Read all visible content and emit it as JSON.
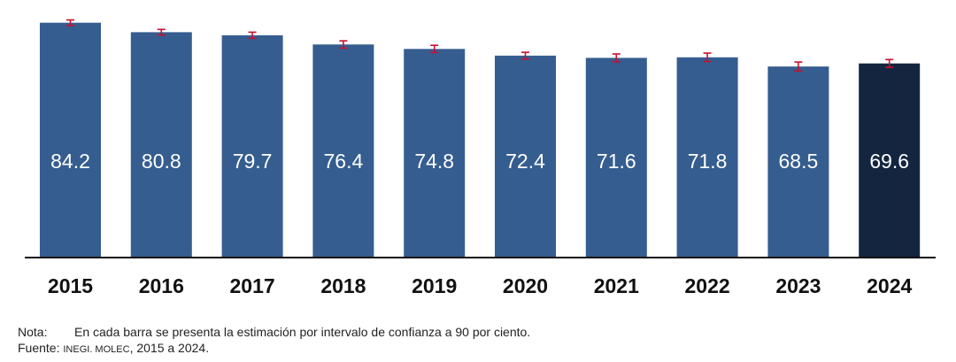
{
  "chart_data": {
    "type": "bar",
    "categories": [
      "2015",
      "2016",
      "2017",
      "2018",
      "2019",
      "2020",
      "2021",
      "2022",
      "2023",
      "2024"
    ],
    "values": [
      84.2,
      80.8,
      79.7,
      76.4,
      74.8,
      72.4,
      71.6,
      71.8,
      68.5,
      69.6
    ],
    "error_bars": {
      "lower": [
        83.2,
        79.8,
        78.6,
        75.1,
        73.5,
        71.2,
        70.2,
        70.3,
        66.9,
        68.2
      ],
      "upper": [
        85.2,
        81.8,
        80.8,
        77.7,
        76.1,
        73.6,
        73.0,
        73.3,
        70.1,
        71.0
      ]
    },
    "title": "",
    "xlabel": "",
    "ylabel": "",
    "ylim": [
      0,
      86
    ],
    "grid": false,
    "legend": "none",
    "highlight_category": "2024",
    "colors": {
      "bar": "#355d8f",
      "highlight": "#13253f",
      "error": "#c8102e",
      "axis": "#111111",
      "label": "#ffffff"
    }
  },
  "notes": {
    "nota_label": "Nota:",
    "nota_text": "En cada barra se presenta la estimación por intervalo de confianza a 90 por ciento.",
    "fuente_label": "Fuente:",
    "fuente_org": "INEGI. MOLEC",
    "fuente_rest": ", 2015 a 2024."
  }
}
